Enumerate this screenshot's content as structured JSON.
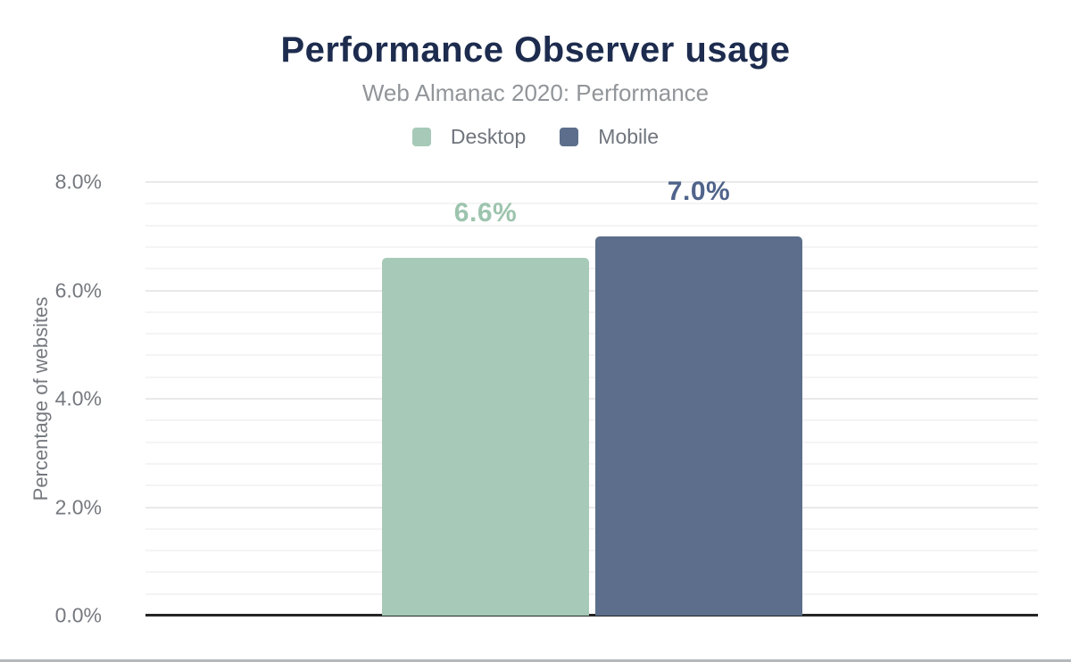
{
  "chart_data": {
    "type": "bar",
    "title": "Performance Observer usage",
    "subtitle": "Web Almanac 2020: Performance",
    "ylabel": "Percentage of websites",
    "xlabel": "",
    "categories": [
      "Desktop",
      "Mobile"
    ],
    "series": [
      {
        "name": "Desktop",
        "value": 6.6,
        "value_label": "6.6%",
        "color": "#a6cab7",
        "label_color": "#9dc4ae"
      },
      {
        "name": "Mobile",
        "value": 7.0,
        "value_label": "7.0%",
        "color": "#5c6e8b",
        "label_color": "#50648b"
      }
    ],
    "ylim": [
      0,
      8
    ],
    "yticks": [
      {
        "value": 0,
        "label": "0.0%"
      },
      {
        "value": 2,
        "label": "2.0%"
      },
      {
        "value": 4,
        "label": "4.0%"
      },
      {
        "value": 6,
        "label": "6.0%"
      },
      {
        "value": 8,
        "label": "8.0%"
      }
    ],
    "grid": {
      "visible": true,
      "major_step": 2,
      "minor_step": 0.4
    },
    "legend_position": "top",
    "colors": {
      "title": "#1d2c4e",
      "subtitle": "#919599",
      "axis_text": "#75797f",
      "axis_line": "#252525",
      "major_gridline": "#e9e9e9",
      "minor_gridline": "#f4f4f4"
    }
  }
}
